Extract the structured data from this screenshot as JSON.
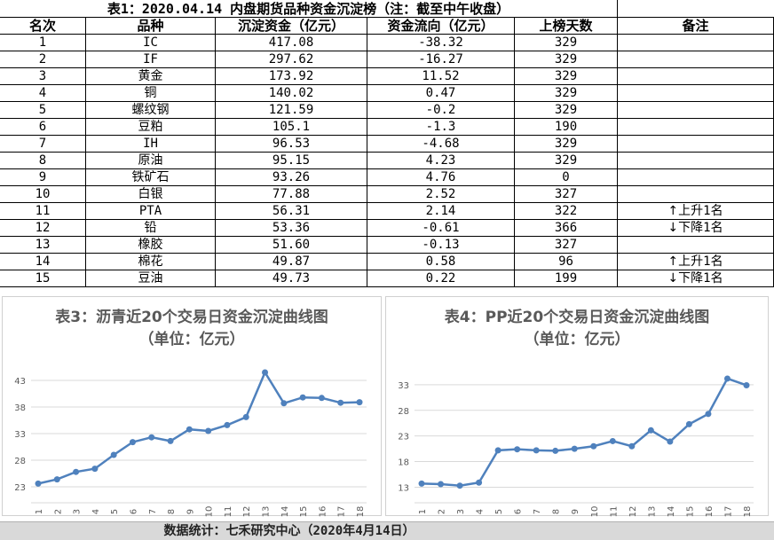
{
  "table": {
    "title": "表1：2020.04.14 内盘期货品种资金沉淀榜（注：截至中午收盘）",
    "headers": [
      "名次",
      "品种",
      "沉淀资金（亿元）",
      "资金流向（亿元）",
      "上榜天数",
      "备注"
    ],
    "rows": [
      [
        "1",
        "IC",
        "417.08",
        "-38.32",
        "329",
        ""
      ],
      [
        "2",
        "IF",
        "297.62",
        "-16.27",
        "329",
        ""
      ],
      [
        "3",
        "黄金",
        "173.92",
        "11.52",
        "329",
        ""
      ],
      [
        "4",
        "铜",
        "140.02",
        "0.47",
        "329",
        ""
      ],
      [
        "5",
        "螺纹钢",
        "121.59",
        "-0.2",
        "329",
        ""
      ],
      [
        "6",
        "豆粕",
        "105.1",
        "-1.3",
        "190",
        ""
      ],
      [
        "7",
        "IH",
        "96.53",
        "-4.68",
        "329",
        ""
      ],
      [
        "8",
        "原油",
        "95.15",
        "4.23",
        "329",
        ""
      ],
      [
        "9",
        "铁矿石",
        "93.26",
        "4.76",
        "0",
        ""
      ],
      [
        "10",
        "白银",
        "77.88",
        "2.52",
        "327",
        ""
      ],
      [
        "11",
        "PTA",
        "56.31",
        "2.14",
        "322",
        "上升1名"
      ],
      [
        "12",
        "铅",
        "53.36",
        "-0.61",
        "366",
        "下降1名"
      ],
      [
        "13",
        "橡胶",
        "51.60",
        "-0.13",
        "327",
        ""
      ],
      [
        "14",
        "棉花",
        "49.87",
        "0.58",
        "96",
        "上升1名"
      ],
      [
        "15",
        "豆油",
        "49.73",
        "0.22",
        "199",
        "下降1名"
      ]
    ],
    "remark_arrows": [
      "",
      "",
      "",
      "",
      "",
      "",
      "",
      "",
      "",
      "",
      "up",
      "down",
      "",
      "up",
      "down"
    ]
  },
  "footer": "数据统计：七禾研究中心（2020年4月14日）",
  "chart_data": [
    {
      "type": "line",
      "title": "表3：沥青近20个交易日资金沉淀曲线图",
      "subtitle": "（单位：亿元）",
      "x": [
        "1",
        "2",
        "3",
        "4",
        "5",
        "6",
        "7",
        "8",
        "9",
        "10",
        "11",
        "12",
        "13",
        "14",
        "15",
        "16",
        "17",
        "18"
      ],
      "values": [
        23.6,
        24.4,
        25.8,
        26.4,
        29.0,
        31.4,
        32.3,
        31.6,
        33.8,
        33.5,
        34.6,
        36.1,
        44.5,
        38.7,
        39.8,
        39.7,
        38.8,
        38.9
      ],
      "yticks": [
        23,
        28,
        33,
        38,
        43
      ],
      "ylim": [
        21,
        47
      ],
      "color": "#4f81bd",
      "grid": true
    },
    {
      "type": "line",
      "title": "表4：PP近20个交易日资金沉淀曲线图",
      "subtitle": "（单位：亿元）",
      "x": [
        "1",
        "2",
        "3",
        "4",
        "5",
        "6",
        "7",
        "8",
        "9",
        "10",
        "11",
        "12",
        "13",
        "14",
        "15",
        "16",
        "17",
        "18"
      ],
      "values": [
        13.7,
        13.6,
        13.3,
        13.9,
        20.2,
        20.4,
        20.2,
        20.1,
        20.5,
        21.0,
        22.0,
        21.0,
        24.1,
        21.9,
        25.3,
        27.3,
        34.2,
        32.9
      ],
      "yticks": [
        13,
        18,
        23,
        28,
        33
      ],
      "ylim": [
        11,
        38
      ],
      "color": "#4f81bd",
      "grid": true
    }
  ]
}
